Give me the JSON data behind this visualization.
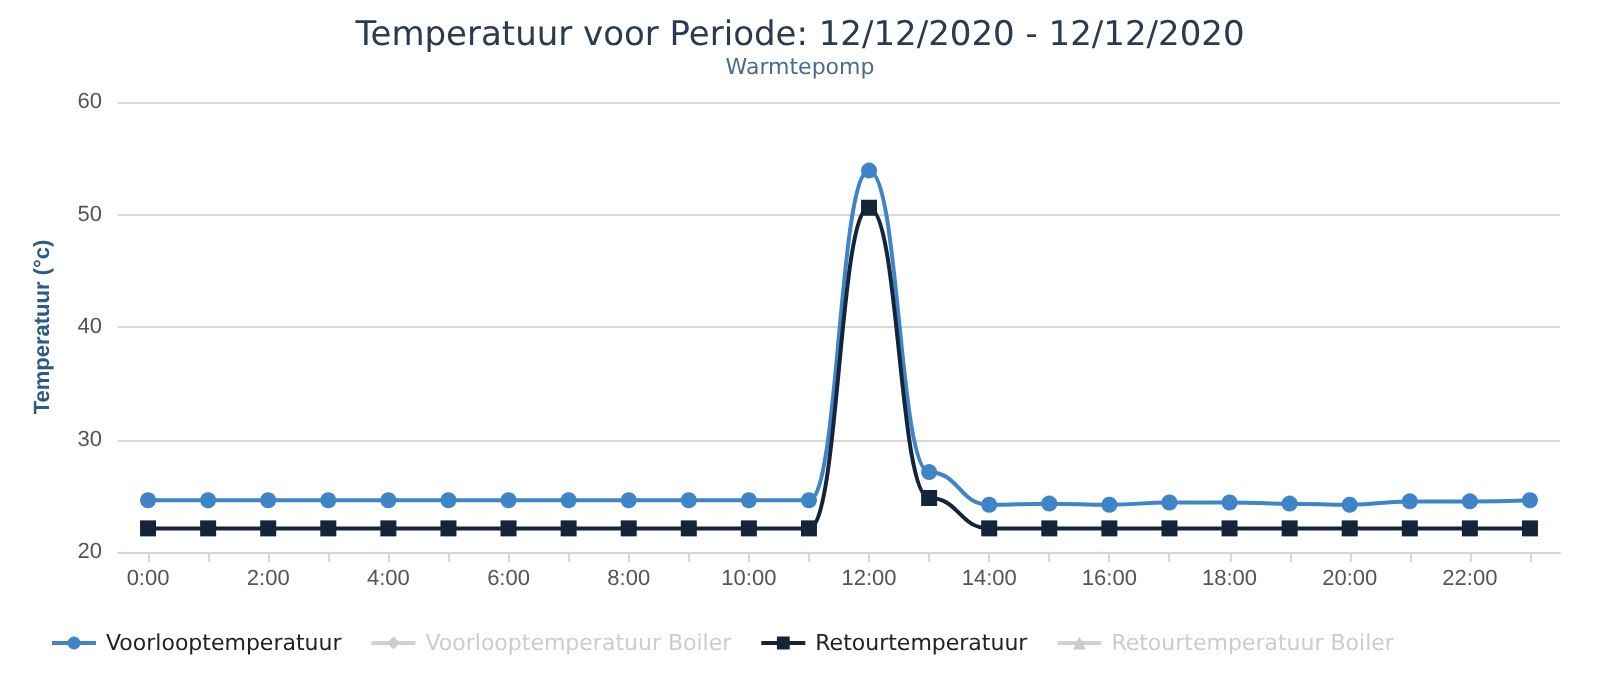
{
  "chart_data": {
    "type": "line",
    "title": "Temperatuur voor Periode: 12/12/2020 - 12/12/2020",
    "subtitle": "Warmtepomp",
    "ylabel": "Temperatuur (°c)",
    "categories": [
      "0:00",
      null,
      "2:00",
      null,
      "4:00",
      null,
      "6:00",
      null,
      "8:00",
      null,
      "10:00",
      null,
      "12:00",
      null,
      "14:00",
      null,
      "16:00",
      null,
      "18:00",
      null,
      "20:00",
      null,
      "22:00",
      null
    ],
    "series": [
      {
        "name": "Voorlooptemperatuur",
        "color": "#3d85c6",
        "marker": "circle",
        "values": [
          24.6,
          24.6,
          24.6,
          24.6,
          24.6,
          24.6,
          24.6,
          24.6,
          24.6,
          24.6,
          24.6,
          24.6,
          53.9,
          27.1,
          24.2,
          24.3,
          24.2,
          24.4,
          24.4,
          24.3,
          24.2,
          24.5,
          24.5,
          24.6
        ]
      },
      {
        "name": "Voorlooptemperatuur Boiler",
        "color": "#cccccc",
        "marker": "diamond",
        "values": [
          null,
          null,
          null,
          null,
          null,
          null,
          null,
          null,
          null,
          null,
          null,
          null,
          null,
          null,
          null,
          null,
          null,
          null,
          null,
          null,
          null,
          null,
          null,
          null
        ]
      },
      {
        "name": "Retourtemperatuur",
        "color": "#14253a",
        "marker": "square",
        "values": [
          22.1,
          22.1,
          22.1,
          22.1,
          22.1,
          22.1,
          22.1,
          22.1,
          22.1,
          22.1,
          22.1,
          22.1,
          50.6,
          24.8,
          22.1,
          22.1,
          22.1,
          22.1,
          22.1,
          22.1,
          22.1,
          22.1,
          22.1,
          22.1
        ]
      },
      {
        "name": "Retourtemperatuur Boiler",
        "color": "#cccccc",
        "marker": "triangle",
        "values": [
          null,
          null,
          null,
          null,
          null,
          null,
          null,
          null,
          null,
          null,
          null,
          null,
          null,
          null,
          null,
          null,
          null,
          null,
          null,
          null,
          null,
          null,
          null,
          null
        ]
      }
    ],
    "ylim": [
      20,
      60
    ],
    "yticks": [
      20,
      30,
      40,
      50,
      60
    ],
    "grid": "y",
    "legend": "bottom left"
  }
}
